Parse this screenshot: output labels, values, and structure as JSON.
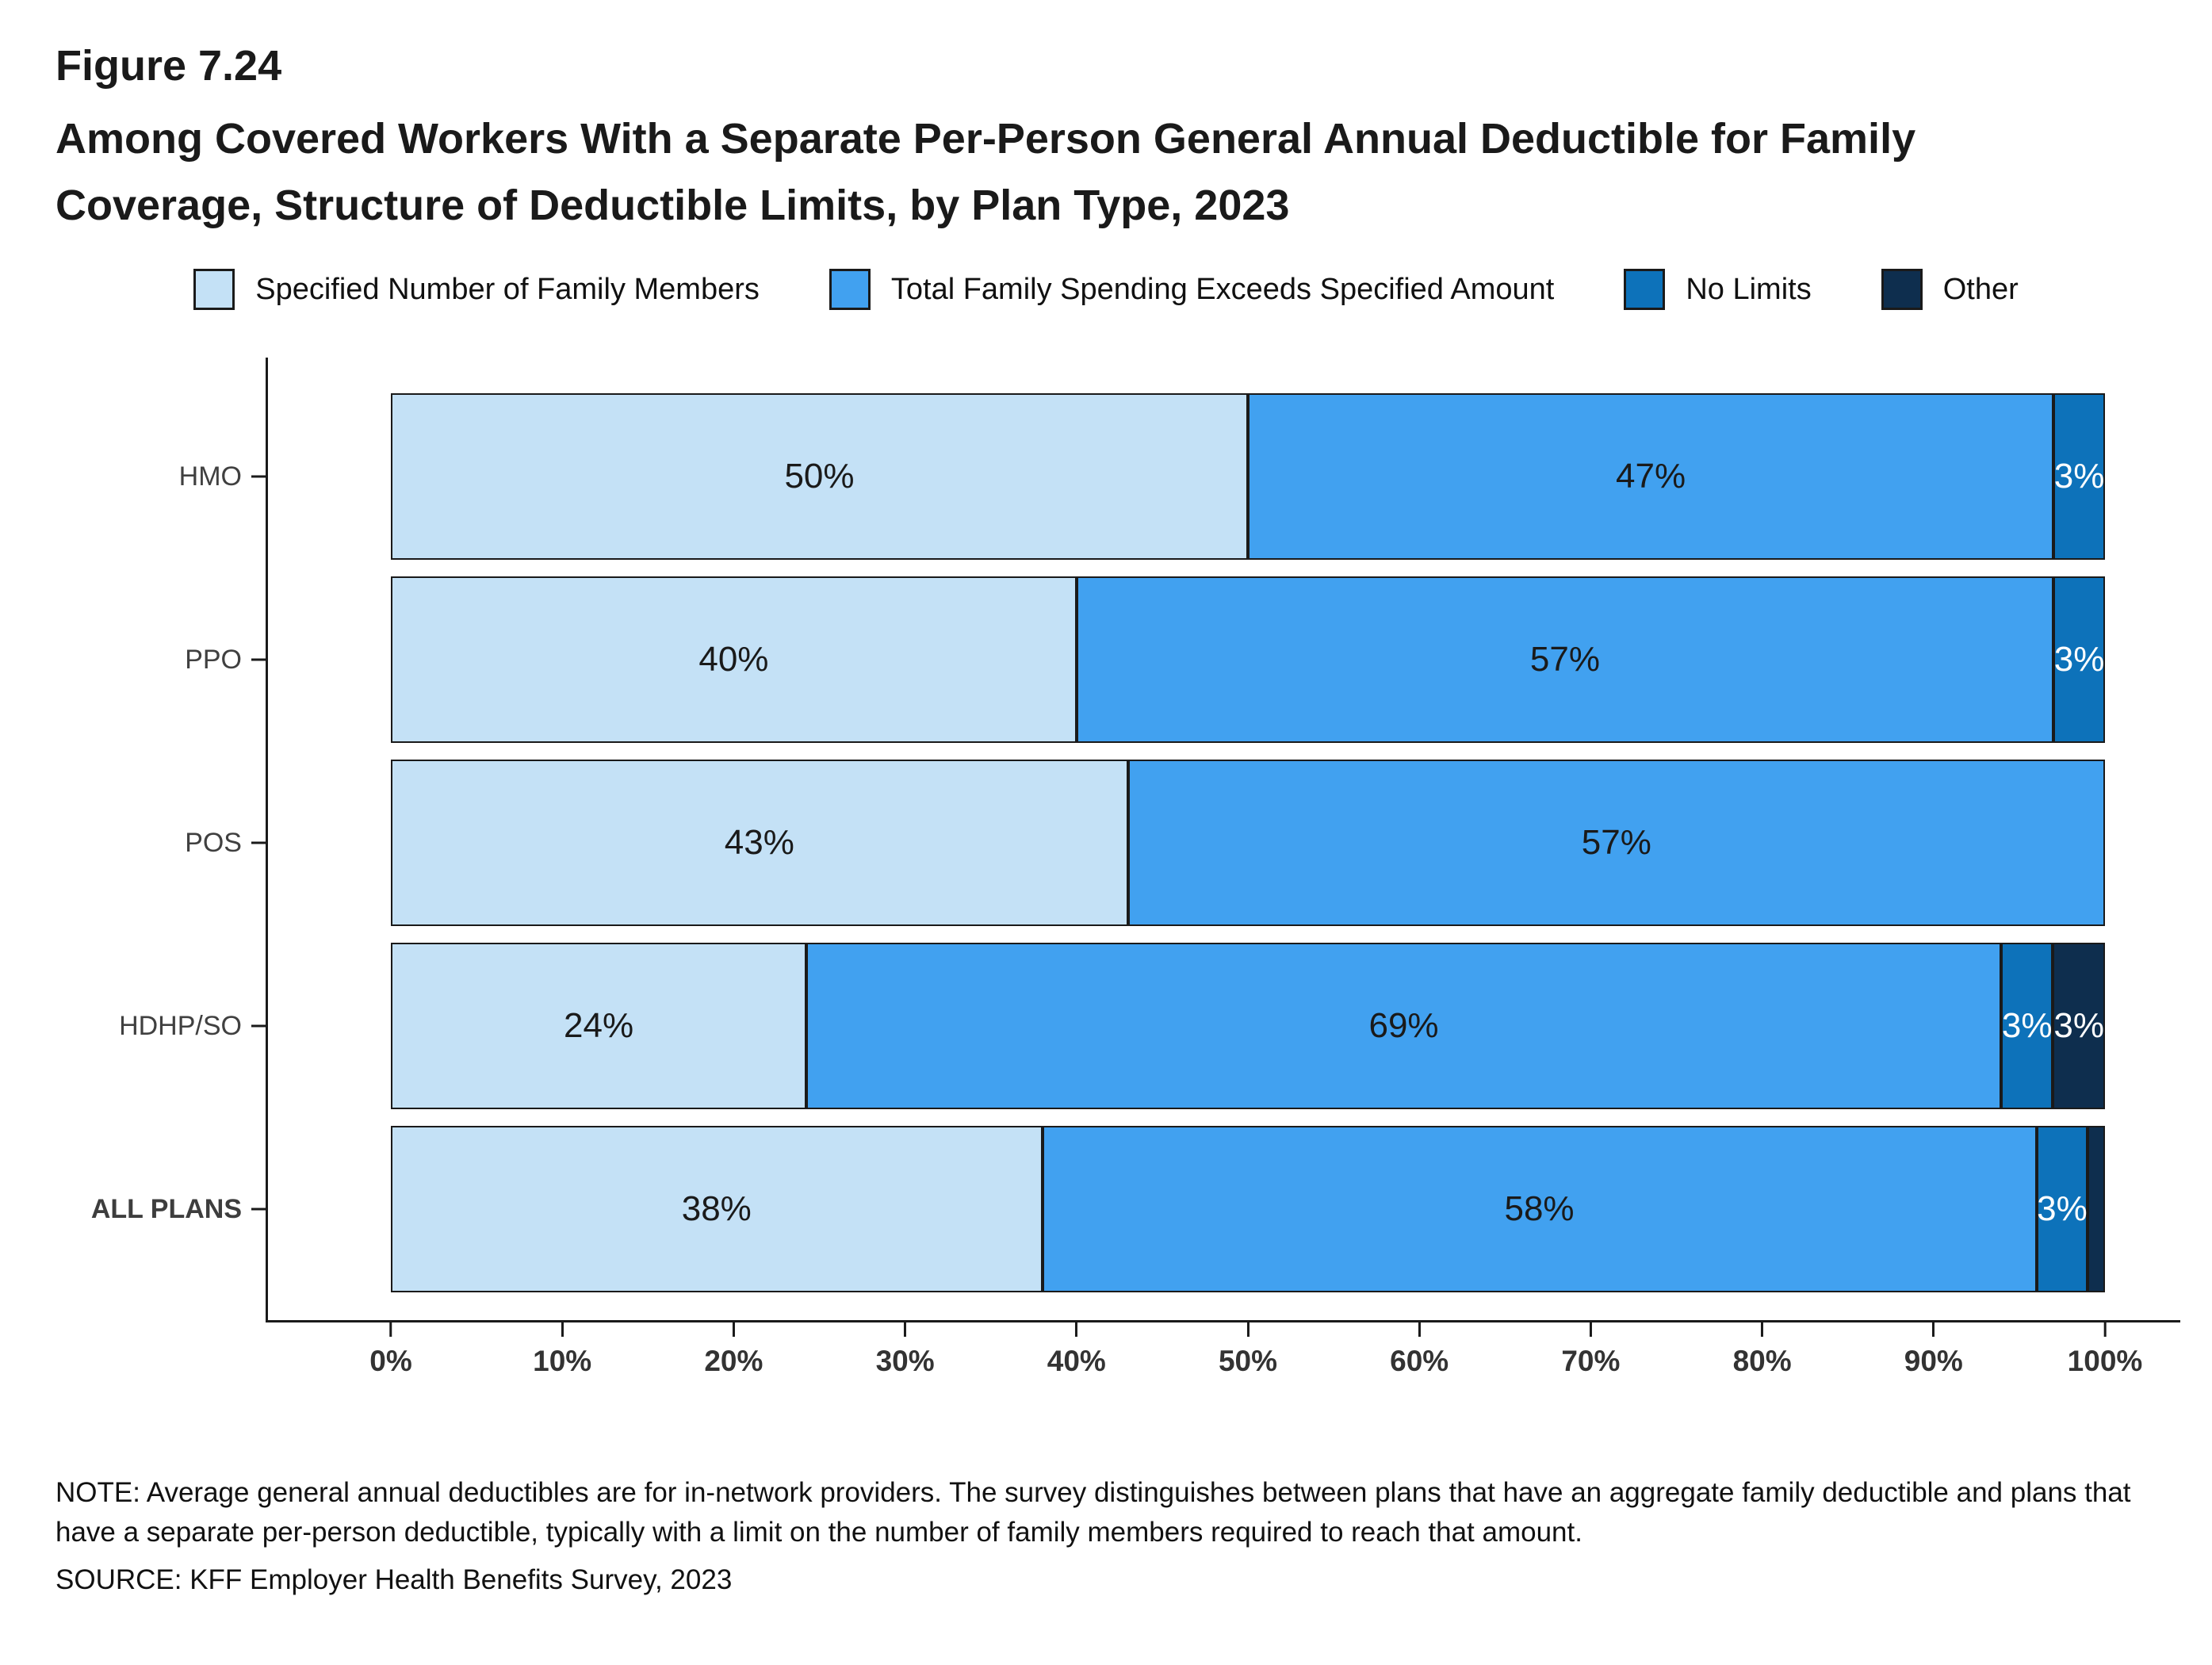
{
  "header": {
    "figure_label": "Figure 7.24",
    "title": "Among Covered Workers With a Separate Per-Person General Annual Deductible for Family Coverage, Structure of Deductible Limits, by Plan Type, 2023"
  },
  "chart_data": {
    "type": "bar",
    "orientation": "horizontal",
    "stacked": true,
    "title": "Among Covered Workers With a Separate Per-Person General Annual Deductible for Family Coverage, Structure of Deductible Limits, by Plan Type, 2023",
    "categories": [
      "HMO",
      "PPO",
      "POS",
      "HDHP/SO",
      "ALL PLANS"
    ],
    "bold_category": "ALL PLANS",
    "xlim": [
      0,
      100
    ],
    "x_ticks": [
      "0%",
      "10%",
      "20%",
      "30%",
      "40%",
      "50%",
      "60%",
      "70%",
      "80%",
      "90%",
      "100%"
    ],
    "grid": false,
    "legend_position": "top",
    "series": [
      {
        "name": "Specified Number of Family Members",
        "color": "#C4E1F6",
        "label_color": "#1A1A1A",
        "values": [
          50,
          40,
          43,
          24,
          38
        ],
        "labels": [
          "50%",
          "40%",
          "43%",
          "24%",
          "38%"
        ]
      },
      {
        "name": "Total Family Spending Exceeds Specified Amount",
        "color": "#41A1F0",
        "label_color": "#1A1A1A",
        "values": [
          47,
          57,
          57,
          69,
          58
        ],
        "labels": [
          "47%",
          "57%",
          "57%",
          "69%",
          "58%"
        ]
      },
      {
        "name": "No Limits",
        "color": "#0D72BA",
        "label_color": "#FFFFFF",
        "values": [
          3,
          3,
          0,
          3,
          3
        ],
        "labels": [
          "3%",
          "3%",
          "",
          "3%",
          "3%"
        ]
      },
      {
        "name": "Other",
        "color": "#0E2E4E",
        "label_color": "#FFFFFF",
        "values": [
          0,
          0,
          0,
          3,
          1
        ],
        "labels": [
          "",
          "",
          "",
          "3%",
          ""
        ]
      }
    ]
  },
  "note": {
    "text": "NOTE: Average general annual deductibles are for in-network providers. The survey distinguishes between plans that have an aggregate family deductible and plans that have a separate per-person deductible, typically with a limit on the number of family members required to reach that amount.",
    "source": "SOURCE: KFF Employer Health Benefits Survey, 2023"
  }
}
